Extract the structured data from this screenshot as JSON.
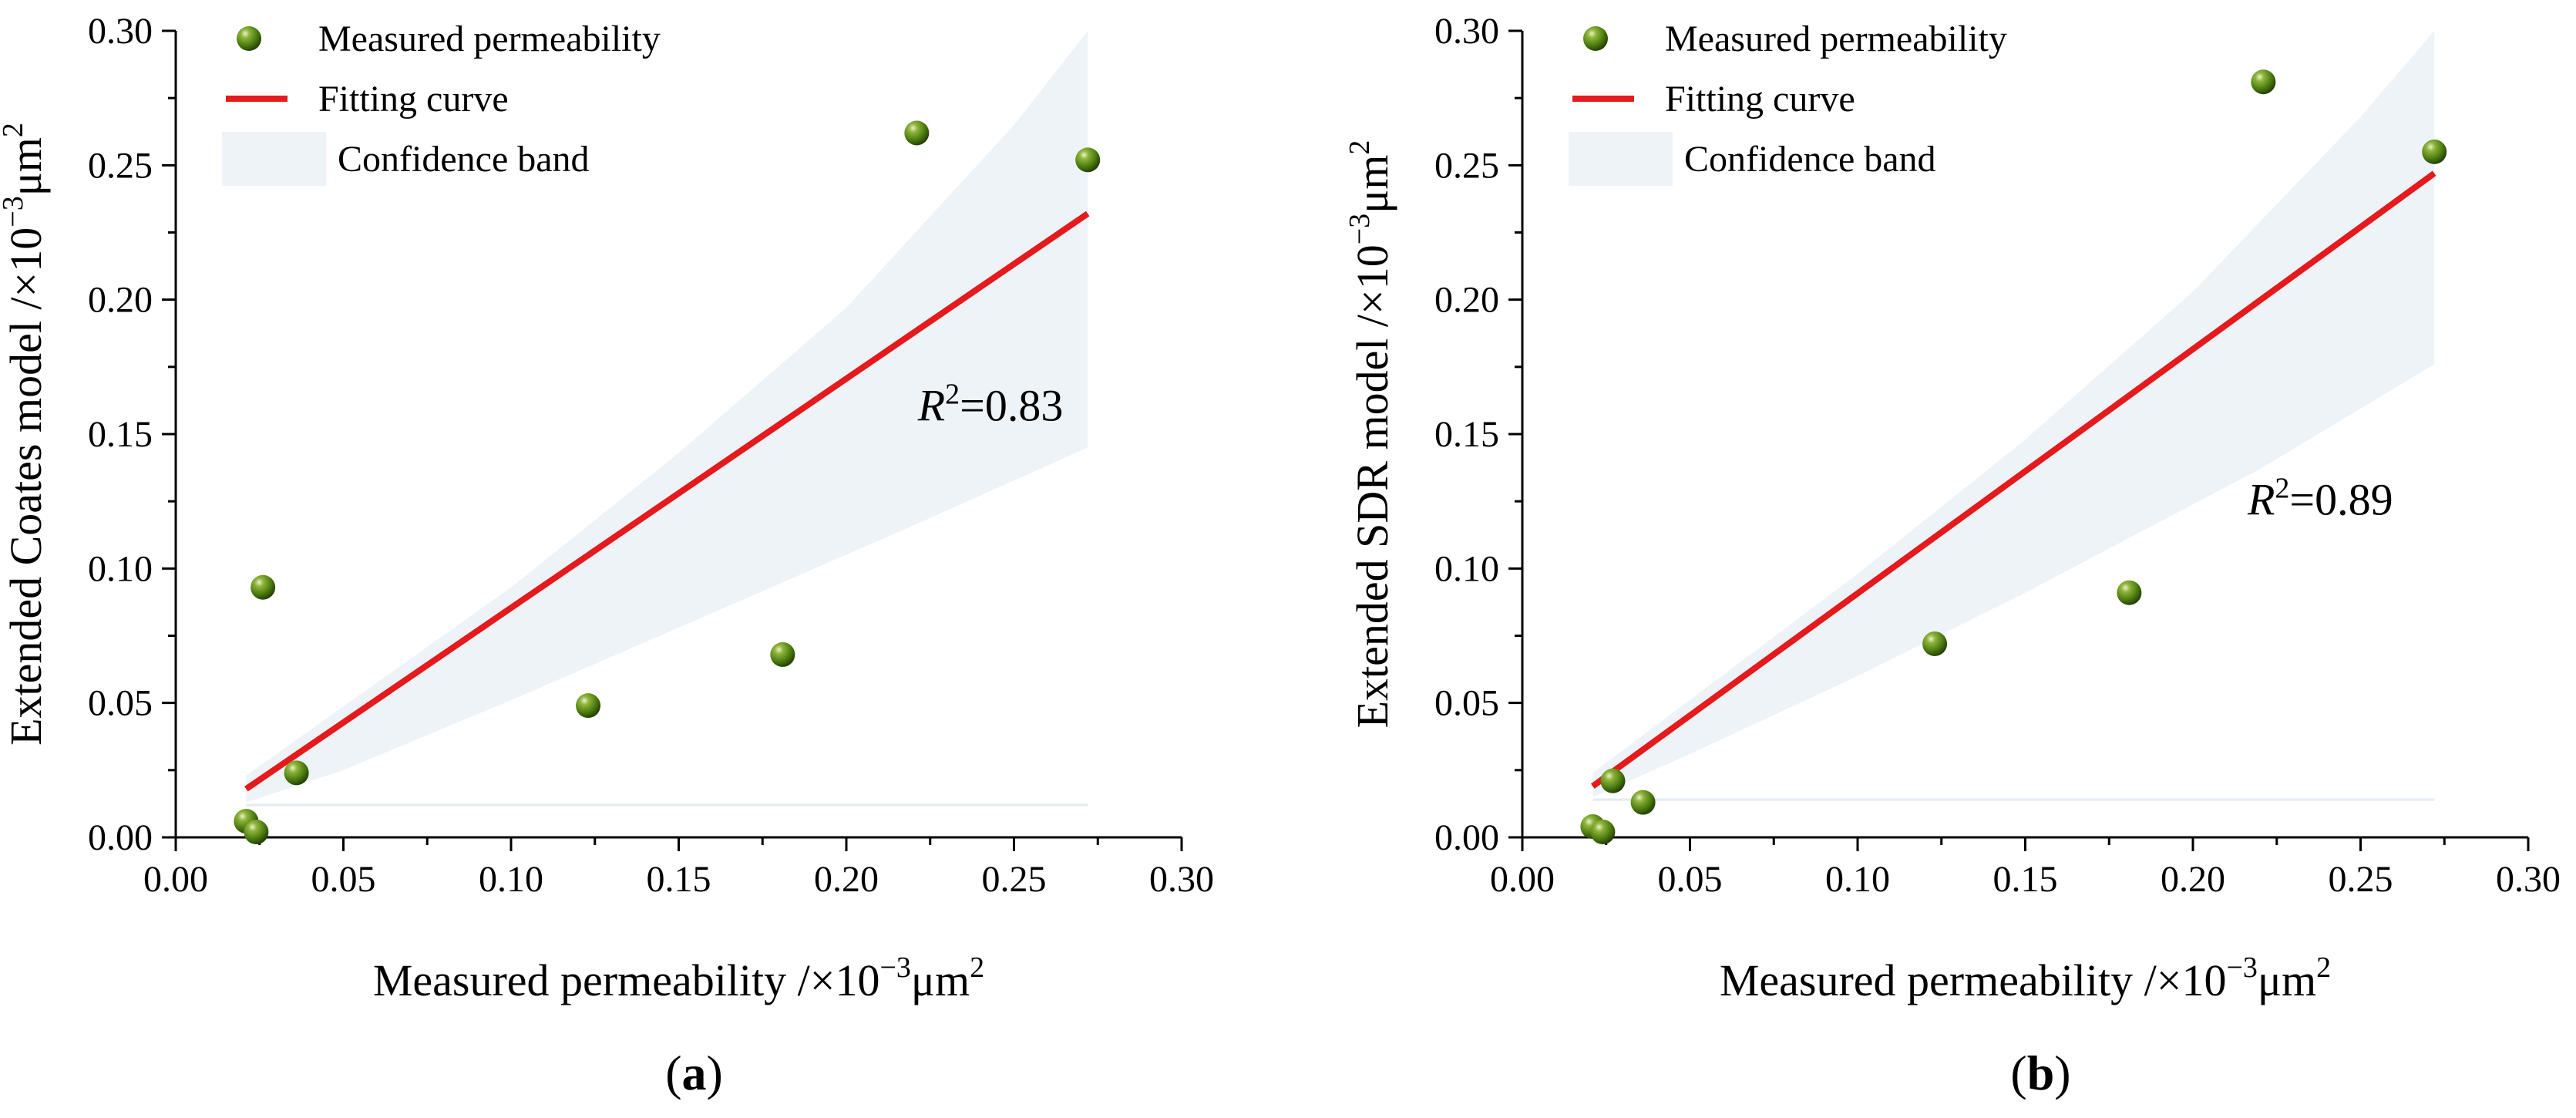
{
  "chart_data": [
    {
      "type": "scatter",
      "panel_label": "(a)",
      "panel_letter": "a",
      "xlabel": "Measured permeability /×10",
      "ylabel": "Extended Coates model /×10",
      "unit_exp": "−3",
      "unit_suffix": "μm",
      "unit_sq": "2",
      "xlim": [
        0.0,
        0.3
      ],
      "ylim": [
        0.0,
        0.3
      ],
      "x_ticks": [
        "0.00",
        "0.05",
        "0.10",
        "0.15",
        "0.20",
        "0.25",
        "0.30"
      ],
      "y_ticks": [
        "0.00",
        "0.05",
        "0.10",
        "0.15",
        "0.20",
        "0.25",
        "0.30"
      ],
      "legend": {
        "position": "top-left",
        "entries": [
          "Measured permeability",
          "Fitting curve",
          "Confidence band"
        ]
      },
      "annotation": {
        "r_symbol": "R",
        "r_exp": "2",
        "value_text": "=0.83",
        "x": 0.243,
        "y": 0.155
      },
      "series": [
        {
          "name": "Measured permeability",
          "x": [
            0.021,
            0.024,
            0.026,
            0.036,
            0.123,
            0.181,
            0.221,
            0.272
          ],
          "y": [
            0.006,
            0.002,
            0.093,
            0.024,
            0.049,
            0.068,
            0.262,
            0.252
          ]
        }
      ],
      "fit": {
        "name": "Fitting curve",
        "x": [
          0.021,
          0.272
        ],
        "y": [
          0.018,
          0.232
        ]
      },
      "band": {
        "name": "Confidence band",
        "upper": [
          [
            0.021,
            0.023
          ],
          [
            0.1,
            0.093
          ],
          [
            0.15,
            0.143
          ],
          [
            0.2,
            0.197
          ],
          [
            0.25,
            0.265
          ],
          [
            0.272,
            0.3
          ]
        ],
        "lower": [
          [
            0.272,
            0.145
          ],
          [
            0.22,
            0.116
          ],
          [
            0.15,
            0.078
          ],
          [
            0.1,
            0.051
          ],
          [
            0.05,
            0.025
          ],
          [
            0.021,
            0.013
          ]
        ],
        "floor": [
          [
            0.021,
            0.012
          ],
          [
            0.272,
            0.012
          ]
        ]
      }
    },
    {
      "type": "scatter",
      "panel_label": "(b)",
      "panel_letter": "b",
      "xlabel": "Measured permeability /×10",
      "ylabel": "Extended SDR model /×10",
      "unit_exp": "−3",
      "unit_suffix": "μm",
      "unit_sq": "2",
      "xlim": [
        0.0,
        0.3
      ],
      "ylim": [
        0.0,
        0.3
      ],
      "x_ticks": [
        "0.00",
        "0.05",
        "0.10",
        "0.15",
        "0.20",
        "0.25",
        "0.30"
      ],
      "y_ticks": [
        "0.00",
        "0.05",
        "0.10",
        "0.15",
        "0.20",
        "0.25",
        "0.30"
      ],
      "legend": {
        "position": "top-left",
        "entries": [
          "Measured permeability",
          "Fitting curve",
          "Confidence band"
        ]
      },
      "annotation": {
        "r_symbol": "R",
        "r_exp": "2",
        "value_text": "=0.89",
        "x": 0.238,
        "y": 0.12
      },
      "series": [
        {
          "name": "Measured permeability",
          "x": [
            0.021,
            0.024,
            0.027,
            0.036,
            0.123,
            0.181,
            0.221,
            0.272
          ],
          "y": [
            0.004,
            0.002,
            0.021,
            0.013,
            0.072,
            0.091,
            0.281,
            0.255
          ]
        }
      ],
      "fit": {
        "name": "Fitting curve",
        "x": [
          0.021,
          0.272
        ],
        "y": [
          0.019,
          0.247
        ]
      },
      "band": {
        "name": "Confidence band",
        "upper": [
          [
            0.021,
            0.024
          ],
          [
            0.1,
            0.098
          ],
          [
            0.15,
            0.148
          ],
          [
            0.2,
            0.203
          ],
          [
            0.25,
            0.268
          ],
          [
            0.272,
            0.3
          ]
        ],
        "lower": [
          [
            0.272,
            0.176
          ],
          [
            0.22,
            0.137
          ],
          [
            0.15,
            0.091
          ],
          [
            0.1,
            0.06
          ],
          [
            0.05,
            0.031
          ],
          [
            0.021,
            0.015
          ]
        ],
        "floor": [
          [
            0.021,
            0.014
          ],
          [
            0.272,
            0.014
          ]
        ]
      }
    }
  ]
}
